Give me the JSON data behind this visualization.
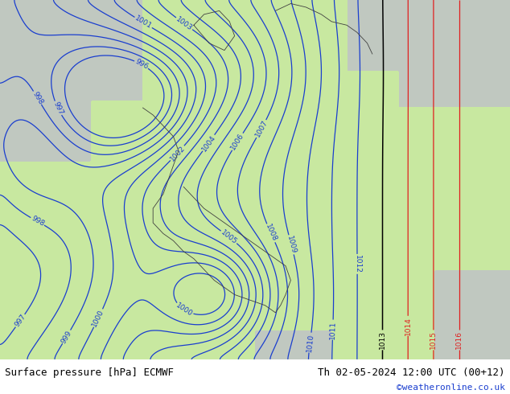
{
  "title_left": "Surface pressure [hPa] ECMWF",
  "title_right": "Th 02-05-2024 12:00 UTC (00+12)",
  "credit": "©weatheronline.co.uk",
  "land_color": "#c8e8a0",
  "sea_color": "#c0c8c0",
  "bottom_bg": "#ffffff",
  "isobar_color_blue": "#1a3ecf",
  "isobar_color_red": "#e02020",
  "isobar_color_black": "#000000",
  "label_fontsize": 6.5,
  "title_fontsize": 9,
  "credit_fontsize": 8,
  "figwidth": 6.34,
  "figheight": 4.9,
  "dpi": 100
}
